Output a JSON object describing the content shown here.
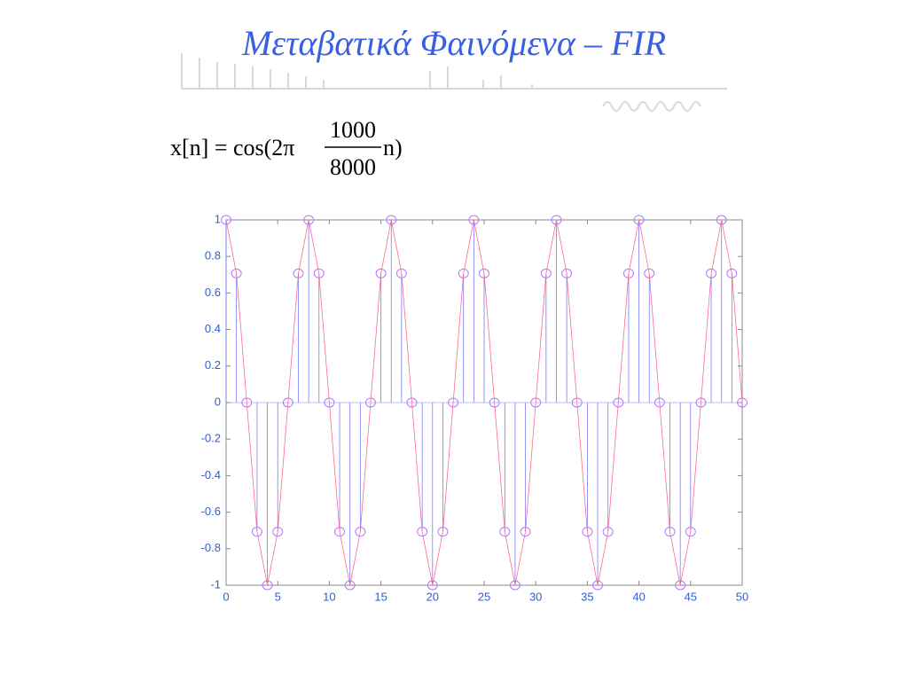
{
  "chart_data": {
    "type": "stem",
    "title": "Μεταβατικά Φαινόμενα – FIR",
    "annotations": {
      "formula_left": "x[n] = cos(2π",
      "numerator": "1000",
      "denominator": "8000",
      "formula_right": "n)"
    },
    "x": [
      0,
      1,
      2,
      3,
      4,
      5,
      6,
      7,
      8,
      9,
      10,
      11,
      12,
      13,
      14,
      15,
      16,
      17,
      18,
      19,
      20,
      21,
      22,
      23,
      24,
      25,
      26,
      27,
      28,
      29,
      30,
      31,
      32,
      33,
      34,
      35,
      36,
      37,
      38,
      39,
      40,
      41,
      42,
      43,
      44,
      45,
      46,
      47,
      48,
      49,
      50
    ],
    "values": [
      1,
      0.707,
      0,
      -0.707,
      -1,
      -0.707,
      0,
      0.707,
      1,
      0.707,
      0,
      -0.707,
      -1,
      -0.707,
      0,
      0.707,
      1,
      0.707,
      0,
      -0.707,
      -1,
      -0.707,
      0,
      0.707,
      1,
      0.707,
      0,
      -0.707,
      -1,
      -0.707,
      0,
      0.707,
      1,
      0.707,
      0,
      -0.707,
      -1,
      -0.707,
      0,
      0.707,
      1,
      0.707,
      0,
      -0.707,
      -1,
      -0.707,
      0,
      0.707,
      1,
      0.707,
      0
    ],
    "color": "#7b7bff",
    "line_color": "#ff6a8a",
    "marker_color": "#b477ff",
    "xlim": [
      0,
      50
    ],
    "xticks": [
      0,
      5,
      10,
      15,
      20,
      25,
      30,
      35,
      40,
      45,
      50
    ],
    "ylim": [
      -1,
      1
    ],
    "yticks": [
      -1,
      -0.8,
      -0.6,
      -0.4,
      -0.2,
      0,
      0.2,
      0.4,
      0.6,
      0.8,
      1
    ]
  }
}
